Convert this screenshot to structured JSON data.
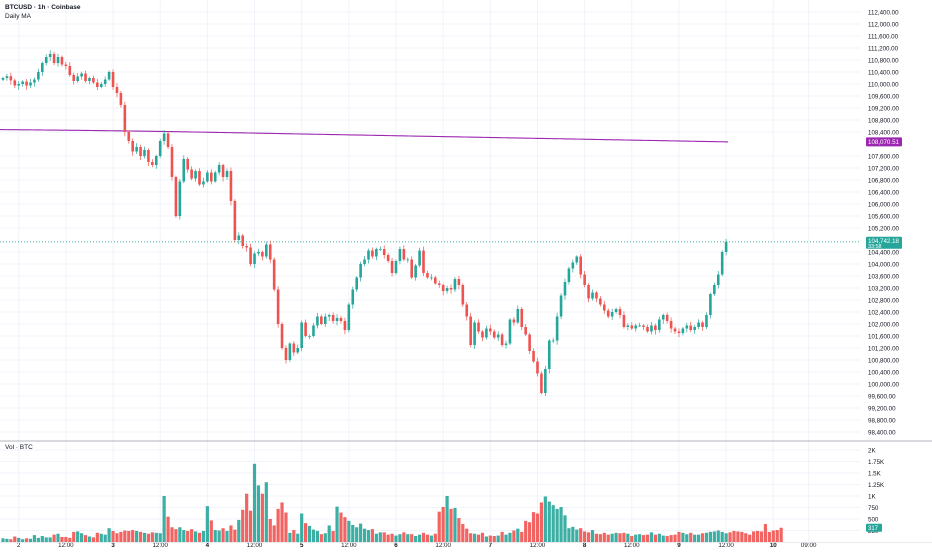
{
  "header": {
    "symbol_title": "BTCUSD · 1h · Coinbase",
    "ma_label": "Daily MA",
    "vol_label": "Vol · BTC"
  },
  "colors": {
    "up": "#26a69a",
    "down": "#ef5350",
    "ma": "#9c27b0",
    "grid": "#f0f3fa",
    "axis_text": "#131722"
  },
  "chart_data": [
    {
      "type": "candlestick",
      "title": "BTCUSD · 1h · Coinbase",
      "y_axis_ticks": [
        "112,400.00",
        "112,000.00",
        "111,600.00",
        "111,200.00",
        "110,800.00",
        "110,400.00",
        "110,000.00",
        "109,600.00",
        "109,200.00",
        "108,800.00",
        "108,400.00",
        "107,600.00",
        "107,200.00",
        "106,800.00",
        "106,400.00",
        "106,000.00",
        "105,600.00",
        "105,200.00",
        "104,400.00",
        "104,000.00",
        "103,600.00",
        "103,200.00",
        "102,800.00",
        "102,400.00",
        "102,000.00",
        "101,600.00",
        "101,200.00",
        "100,800.00",
        "100,400.00",
        "100,000.00",
        "99,600.00",
        "99,200.00",
        "98,800.00",
        "98,400.00"
      ],
      "ylim": [
        98200,
        112600
      ],
      "x_axis_ticks": [
        {
          "label": "2",
          "bold": false,
          "index": 4
        },
        {
          "label": "12:00",
          "bold": false,
          "index": 16
        },
        {
          "label": "3",
          "bold": true,
          "index": 28
        },
        {
          "label": "12:00",
          "bold": false,
          "index": 40
        },
        {
          "label": "4",
          "bold": true,
          "index": 52
        },
        {
          "label": "12:00",
          "bold": false,
          "index": 64
        },
        {
          "label": "5",
          "bold": true,
          "index": 76
        },
        {
          "label": "12:00",
          "bold": false,
          "index": 88
        },
        {
          "label": "6",
          "bold": true,
          "index": 100
        },
        {
          "label": "12:00",
          "bold": false,
          "index": 112
        },
        {
          "label": "7",
          "bold": true,
          "index": 124
        },
        {
          "label": "12:00",
          "bold": false,
          "index": 136
        },
        {
          "label": "8",
          "bold": true,
          "index": 148
        },
        {
          "label": "12:00",
          "bold": false,
          "index": 160
        },
        {
          "label": "9",
          "bold": true,
          "index": 172
        },
        {
          "label": "12:00",
          "bold": false,
          "index": 184
        },
        {
          "label": "10",
          "bold": true,
          "index": 196
        },
        {
          "label": "09:00",
          "bold": false,
          "index": 205
        }
      ],
      "close_series": [
        110200,
        110260,
        110120,
        109950,
        110000,
        110080,
        109950,
        110050,
        110150,
        110400,
        110700,
        110900,
        111000,
        110700,
        110900,
        110650,
        110600,
        110300,
        110100,
        110250,
        110350,
        110100,
        110200,
        110050,
        109900,
        110000,
        110150,
        110400,
        109900,
        109700,
        109300,
        108400,
        108100,
        107750,
        107900,
        107600,
        107800,
        107400,
        107300,
        107600,
        108100,
        108350,
        107900,
        106900,
        105600,
        106750,
        107500,
        107150,
        106850,
        107100,
        106650,
        106750,
        107050,
        106750,
        107050,
        107300,
        106900,
        107100,
        106100,
        104800,
        104950,
        104600,
        104550,
        104000,
        104350,
        104400,
        104250,
        104650,
        104150,
        103150,
        102000,
        101200,
        100800,
        101350,
        101050,
        101200,
        102050,
        101600,
        101600,
        101950,
        102250,
        102000,
        102250,
        102300,
        102100,
        102200,
        102100,
        101800,
        102650,
        103150,
        103550,
        104000,
        104150,
        104450,
        104250,
        104500,
        104500,
        104300,
        104100,
        103700,
        104100,
        104500,
        104150,
        104150,
        103550,
        103950,
        104450,
        103700,
        103550,
        103550,
        103350,
        103300,
        103100,
        103200,
        103150,
        103500,
        103300,
        102650,
        102250,
        101300,
        102050,
        101750,
        101550,
        101850,
        101750,
        101550,
        101650,
        101300,
        101350,
        102150,
        102050,
        102500,
        101900,
        101650,
        101100,
        100750,
        100350,
        99700,
        100500,
        101450,
        101450,
        102250,
        102950,
        103400,
        103850,
        104050,
        104250,
        103650,
        103300,
        102850,
        103050,
        102850,
        102650,
        102450,
        102250,
        102400,
        102500,
        102300,
        101900,
        101950,
        101850,
        101950,
        101950,
        101900,
        101750,
        101950,
        101800,
        102150,
        102300,
        102100,
        101850,
        101750,
        101700,
        101850,
        101950,
        101800,
        101900,
        102050,
        101900,
        102300,
        103000,
        103300,
        103650,
        104400,
        104740
      ],
      "last_price": "104,742.18",
      "last_price_timer": "33:58",
      "ma_value_label": "108,070.51",
      "ma_start": 108480,
      "ma_end": 108070,
      "ma_peak": 108520
    },
    {
      "type": "bar",
      "title": "Vol · BTC",
      "y_axis_ticks": [
        "2K",
        "1.75K",
        "1.5K",
        "1.25K",
        "1K",
        "750",
        "500",
        "250"
      ],
      "ylim": [
        0,
        2000
      ],
      "volume_series": [
        80,
        70,
        60,
        120,
        90,
        60,
        80,
        70,
        150,
        90,
        130,
        100,
        100,
        160,
        180,
        110,
        110,
        90,
        220,
        230,
        190,
        150,
        120,
        100,
        200,
        180,
        160,
        300,
        240,
        190,
        220,
        250,
        240,
        260,
        240,
        220,
        200,
        180,
        210,
        200,
        190,
        1000,
        550,
        320,
        280,
        320,
        260,
        240,
        280,
        230,
        200,
        240,
        780,
        470,
        260,
        250,
        300,
        240,
        360,
        270,
        480,
        700,
        1050,
        680,
        1700,
        1230,
        1050,
        1300,
        500,
        360,
        720,
        860,
        640,
        200,
        260,
        180,
        620,
        410,
        350,
        270,
        240,
        170,
        190,
        360,
        240,
        770,
        640,
        540,
        460,
        370,
        320,
        400,
        290,
        260,
        280,
        180,
        210,
        210,
        160,
        180,
        140,
        170,
        210,
        170,
        170,
        130,
        160,
        200,
        160,
        140,
        180,
        660,
        760,
        1000,
        720,
        740,
        520,
        390,
        290,
        190,
        180,
        160,
        200,
        120,
        140,
        130,
        140,
        220,
        160,
        200,
        250,
        290,
        220,
        460,
        430,
        650,
        620,
        860,
        990,
        880,
        800,
        720,
        760,
        580,
        300,
        330,
        270,
        300,
        230,
        210,
        260,
        180,
        170,
        200,
        160,
        180,
        200,
        190,
        200,
        180,
        130,
        160,
        170,
        150,
        160,
        210,
        160,
        180,
        140,
        130,
        150,
        160,
        220,
        200,
        170,
        200,
        160,
        160,
        190,
        200,
        220,
        230,
        250,
        220,
        190,
        210,
        240,
        230,
        220,
        190,
        160,
        230,
        240,
        230,
        390,
        220,
        250,
        260,
        310
      ],
      "last_volume_label": "317"
    }
  ]
}
